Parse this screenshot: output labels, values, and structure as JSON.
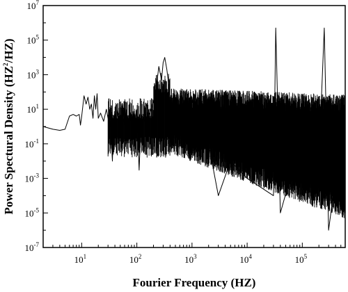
{
  "chart_data": {
    "type": "line",
    "title": "",
    "xlabel": "Fourier Frequency (HZ)",
    "ylabel": {
      "base": "Power Spectural Density (HZ",
      "sup": "2",
      "tail": "/HZ)"
    },
    "x_scale": "log",
    "y_scale": "log",
    "xlim": [
      2,
      600000
    ],
    "ylim": [
      1e-07,
      10000000.0
    ],
    "x_ticks": [
      {
        "base": "10",
        "exp": "1",
        "value": 10
      },
      {
        "base": "10",
        "exp": "2",
        "value": 100
      },
      {
        "base": "10",
        "exp": "3",
        "value": 1000
      },
      {
        "base": "10",
        "exp": "4",
        "value": 10000
      },
      {
        "base": "10",
        "exp": "5",
        "value": 100000
      }
    ],
    "y_ticks": [
      {
        "base": "10",
        "exp": "-7",
        "value": 1e-07
      },
      {
        "base": "10",
        "exp": "-5",
        "value": 1e-05
      },
      {
        "base": "10",
        "exp": "-3",
        "value": 0.001
      },
      {
        "base": "10",
        "exp": "-1",
        "value": 0.1
      },
      {
        "base": "10",
        "exp": "1",
        "value": 10
      },
      {
        "base": "10",
        "exp": "3",
        "value": 1000
      },
      {
        "base": "10",
        "exp": "5",
        "value": 100000
      },
      {
        "base": "10",
        "exp": "7",
        "value": 10000000
      }
    ],
    "grid": false,
    "line_color": "#000000",
    "series": [
      {
        "points": [
          [
            2,
            1.0
          ],
          [
            3,
            0.7
          ],
          [
            4,
            0.6
          ],
          [
            5,
            0.7
          ],
          [
            6,
            4
          ],
          [
            7,
            5
          ],
          [
            8,
            4
          ],
          [
            9,
            5
          ],
          [
            9.5,
            1.2
          ],
          [
            10,
            4
          ],
          [
            11,
            60
          ],
          [
            12,
            20
          ],
          [
            13,
            50
          ],
          [
            14,
            10
          ],
          [
            15,
            20
          ],
          [
            16,
            3
          ],
          [
            17,
            60
          ],
          [
            18,
            10
          ],
          [
            19,
            80
          ],
          [
            20,
            3
          ],
          [
            22,
            6
          ],
          [
            25,
            2
          ],
          [
            28,
            10
          ],
          [
            30,
            3
          ],
          [
            33,
            2
          ],
          [
            36,
            0.01
          ],
          [
            38,
            3
          ],
          [
            40,
            0.5
          ],
          [
            45,
            10
          ],
          [
            50,
            2
          ],
          [
            55,
            20
          ],
          [
            60,
            1
          ],
          [
            65,
            10
          ],
          [
            70,
            0.5
          ],
          [
            80,
            5
          ],
          [
            90,
            2
          ],
          [
            100,
            10
          ],
          [
            110,
            0.003
          ],
          [
            120,
            5
          ],
          [
            140,
            2
          ],
          [
            150,
            20
          ],
          [
            170,
            5
          ],
          [
            200,
            30
          ],
          [
            220,
            100
          ],
          [
            250,
            3000
          ],
          [
            280,
            500
          ],
          [
            300,
            5000
          ],
          [
            320,
            10000
          ],
          [
            350,
            2000
          ],
          [
            370,
            500
          ],
          [
            400,
            20
          ],
          [
            450,
            5
          ],
          [
            500,
            10
          ],
          [
            600,
            2
          ],
          [
            700,
            20
          ],
          [
            800,
            5
          ],
          [
            1000,
            50
          ],
          [
            1200,
            1
          ],
          [
            1500,
            20
          ],
          [
            2000,
            0.1
          ],
          [
            3000,
            0.0001
          ],
          [
            5000,
            0.01
          ],
          [
            10000,
            0.001
          ],
          [
            30000,
            0.0001
          ],
          [
            33000,
            500000
          ],
          [
            40000,
            1e-05
          ],
          [
            60000,
            0.001
          ],
          [
            100000,
            0.01
          ],
          [
            200000,
            0.01
          ],
          [
            250000,
            500000
          ],
          [
            300000,
            1e-06
          ],
          [
            400000,
            0.001
          ],
          [
            500000,
            0.0001
          ],
          [
            600000,
            0.01
          ]
        ]
      }
    ]
  }
}
